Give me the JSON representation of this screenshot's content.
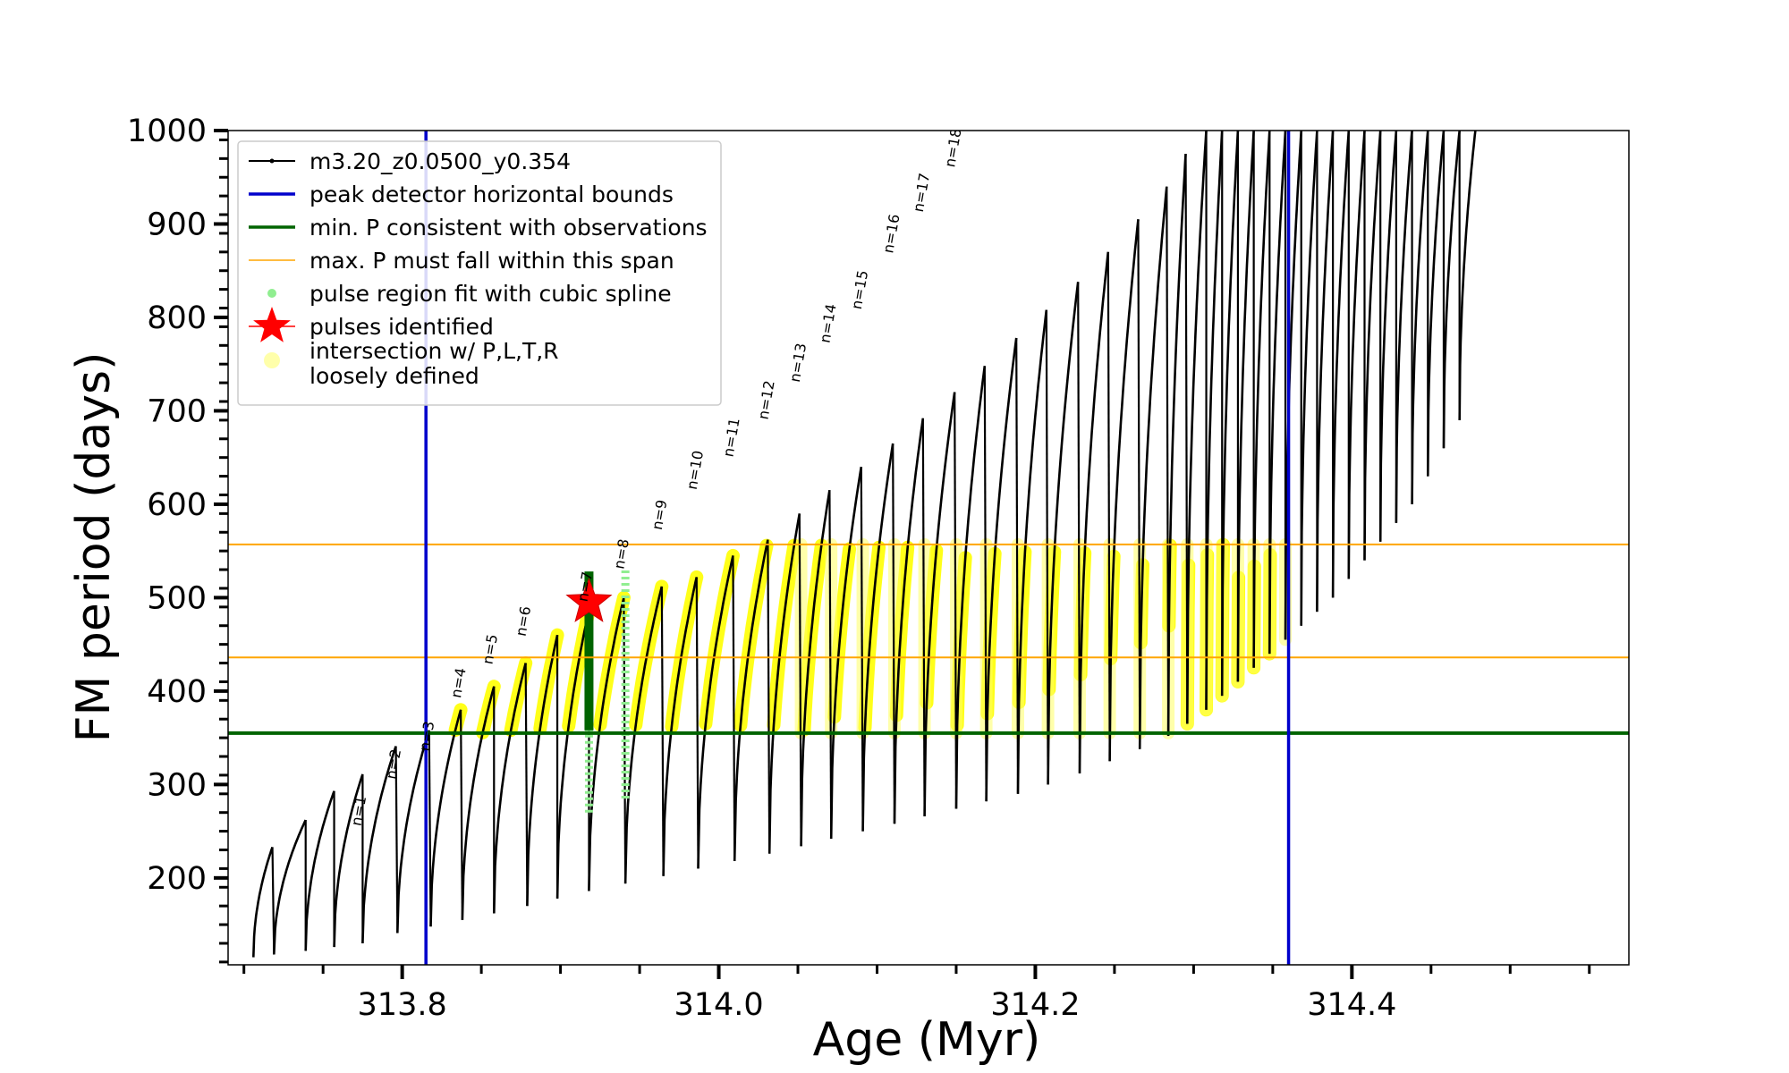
{
  "chart_data": {
    "type": "line",
    "xlabel": "Age (Myr)",
    "ylabel": "FM period (days)",
    "xlim": [
      313.69,
      314.575
    ],
    "ylim": [
      107,
      1000
    ],
    "xticks": [
      313.8,
      314.0,
      314.2,
      314.4
    ],
    "xtick_labels": [
      "313.8",
      "314.0",
      "314.2",
      "314.4"
    ],
    "yticks": [
      200,
      300,
      400,
      500,
      600,
      700,
      800,
      900,
      1000
    ],
    "ytick_labels": [
      "200",
      "300",
      "400",
      "500",
      "600",
      "700",
      "800",
      "900",
      "1000"
    ],
    "legend_position": "top-left",
    "legend": [
      {
        "label": "m3.20_z0.0500_y0.354",
        "style": "line-dots",
        "color": "#000000"
      },
      {
        "label": "peak detector horizontal bounds",
        "style": "line",
        "color": "#0000cc"
      },
      {
        "label": "min. P consistent with observations",
        "style": "line",
        "color": "#006400"
      },
      {
        "label": "max. P must fall within this span",
        "style": "line",
        "color": "#ffa500"
      },
      {
        "label": "pulse region fit with cubic spline",
        "style": "dot",
        "color": "#90ee90"
      },
      {
        "label": "pulses identified",
        "style": "star",
        "color": "#ff0000"
      },
      {
        "label_lines": [
          "intersection w/ P,L,T,R",
          "loosely defined"
        ],
        "style": "dot",
        "color": "#ffffaa"
      }
    ],
    "vertical_lines": [
      313.815,
      314.36
    ],
    "min_period_line": 355,
    "max_period_span": [
      436,
      557
    ],
    "pulses": [
      {
        "start": 313.706,
        "end": 313.718,
        "min": 115,
        "peak": 233
      },
      {
        "start": 313.719,
        "end": 313.739,
        "min": 118,
        "peak": 262
      },
      {
        "start": 313.739,
        "end": 313.757,
        "min": 122,
        "peak": 293
      },
      {
        "start": 313.757,
        "end": 313.775,
        "min": 126,
        "peak": 311
      },
      {
        "start": 313.775,
        "end": 313.796,
        "min": 130,
        "peak": 341
      },
      {
        "start": 313.797,
        "end": 313.817,
        "min": 141,
        "peak": 358
      },
      {
        "start": 313.818,
        "end": 313.837,
        "min": 148,
        "peak": 380
      },
      {
        "start": 313.838,
        "end": 313.858,
        "min": 155,
        "peak": 405
      },
      {
        "start": 313.858,
        "end": 313.878,
        "min": 162,
        "peak": 430
      },
      {
        "start": 313.879,
        "end": 313.898,
        "min": 170,
        "peak": 460
      },
      {
        "start": 313.898,
        "end": 313.918,
        "min": 178,
        "peak": 487
      },
      {
        "start": 313.918,
        "end": 313.94,
        "min": 186,
        "peak": 500
      },
      {
        "start": 313.941,
        "end": 313.964,
        "min": 194,
        "peak": 512
      },
      {
        "start": 313.965,
        "end": 313.986,
        "min": 202,
        "peak": 522
      },
      {
        "start": 313.987,
        "end": 314.009,
        "min": 210,
        "peak": 545
      },
      {
        "start": 314.01,
        "end": 314.031,
        "min": 218,
        "peak": 562
      },
      {
        "start": 314.032,
        "end": 314.051,
        "min": 226,
        "peak": 590
      },
      {
        "start": 314.052,
        "end": 314.07,
        "min": 234,
        "peak": 615
      },
      {
        "start": 314.071,
        "end": 314.09,
        "min": 242,
        "peak": 640
      },
      {
        "start": 314.091,
        "end": 314.11,
        "min": 250,
        "peak": 665
      },
      {
        "start": 314.111,
        "end": 314.129,
        "min": 258,
        "peak": 692
      },
      {
        "start": 314.13,
        "end": 314.149,
        "min": 266,
        "peak": 720
      },
      {
        "start": 314.15,
        "end": 314.168,
        "min": 274,
        "peak": 748
      },
      {
        "start": 314.169,
        "end": 314.188,
        "min": 282,
        "peak": 778
      },
      {
        "start": 314.189,
        "end": 314.207,
        "min": 290,
        "peak": 808
      },
      {
        "start": 314.208,
        "end": 314.227,
        "min": 300,
        "peak": 838
      },
      {
        "start": 314.228,
        "end": 314.246,
        "min": 312,
        "peak": 870
      },
      {
        "start": 314.247,
        "end": 314.265,
        "min": 325,
        "peak": 905
      },
      {
        "start": 314.266,
        "end": 314.283,
        "min": 338,
        "peak": 940
      },
      {
        "start": 314.284,
        "end": 314.295,
        "min": 352,
        "peak": 975
      },
      {
        "start": 314.296,
        "end": 314.308,
        "min": 365,
        "peak": 1000
      },
      {
        "start": 314.308,
        "end": 314.318,
        "min": 380,
        "peak": 1000
      },
      {
        "start": 314.318,
        "end": 314.328,
        "min": 395,
        "peak": 1000
      },
      {
        "start": 314.328,
        "end": 314.338,
        "min": 410,
        "peak": 1000
      },
      {
        "start": 314.338,
        "end": 314.348,
        "min": 425,
        "peak": 1000
      },
      {
        "start": 314.348,
        "end": 314.358,
        "min": 440,
        "peak": 1000
      },
      {
        "start": 314.358,
        "end": 314.368,
        "min": 455,
        "peak": 1000
      },
      {
        "start": 314.368,
        "end": 314.378,
        "min": 470,
        "peak": 1000
      },
      {
        "start": 314.378,
        "end": 314.388,
        "min": 485,
        "peak": 1000
      },
      {
        "start": 314.388,
        "end": 314.398,
        "min": 500,
        "peak": 1000
      },
      {
        "start": 314.398,
        "end": 314.408,
        "min": 520,
        "peak": 1000
      },
      {
        "start": 314.408,
        "end": 314.418,
        "min": 540,
        "peak": 1000
      },
      {
        "start": 314.418,
        "end": 314.428,
        "min": 560,
        "peak": 1000
      },
      {
        "start": 314.428,
        "end": 314.438,
        "min": 580,
        "peak": 1000
      },
      {
        "start": 314.438,
        "end": 314.448,
        "min": 600,
        "peak": 1000
      },
      {
        "start": 314.448,
        "end": 314.458,
        "min": 630,
        "peak": 1000
      },
      {
        "start": 314.458,
        "end": 314.468,
        "min": 660,
        "peak": 1000
      },
      {
        "start": 314.468,
        "end": 314.478,
        "min": 690,
        "peak": 1000
      }
    ],
    "pulse_labels": [
      {
        "text": "n=1",
        "x": 313.775,
        "y": 255
      },
      {
        "text": "n=2",
        "x": 313.797,
        "y": 305
      },
      {
        "text": "n=3",
        "x": 313.818,
        "y": 335
      },
      {
        "text": "n=4",
        "x": 313.838,
        "y": 392
      },
      {
        "text": "n=5",
        "x": 313.858,
        "y": 428
      },
      {
        "text": "n=6",
        "x": 313.879,
        "y": 458
      },
      {
        "text": "n=7",
        "x": 313.918,
        "y": 495
      },
      {
        "text": "n=8",
        "x": 313.941,
        "y": 530
      },
      {
        "text": "n=9",
        "x": 313.965,
        "y": 572
      },
      {
        "text": "n=10",
        "x": 313.987,
        "y": 615
      },
      {
        "text": "n=11",
        "x": 314.01,
        "y": 650
      },
      {
        "text": "n=12",
        "x": 314.032,
        "y": 690
      },
      {
        "text": "n=13",
        "x": 314.052,
        "y": 730
      },
      {
        "text": "n=14",
        "x": 314.071,
        "y": 772
      },
      {
        "text": "n=15",
        "x": 314.091,
        "y": 808
      },
      {
        "text": "n=16",
        "x": 314.111,
        "y": 868
      },
      {
        "text": "n=17",
        "x": 314.13,
        "y": 912
      },
      {
        "text": "n=18",
        "x": 314.15,
        "y": 960
      }
    ],
    "spline_regions": [
      {
        "x": 313.918,
        "y_low": 270,
        "y_high": 495
      },
      {
        "x": 313.941,
        "y_low": 285,
        "y_high": 530
      }
    ],
    "identified_pulse": {
      "x": 313.918,
      "y": 495
    },
    "identified_pulse_segment": {
      "x": 313.918,
      "y_low": 358,
      "y_high": 528
    }
  }
}
